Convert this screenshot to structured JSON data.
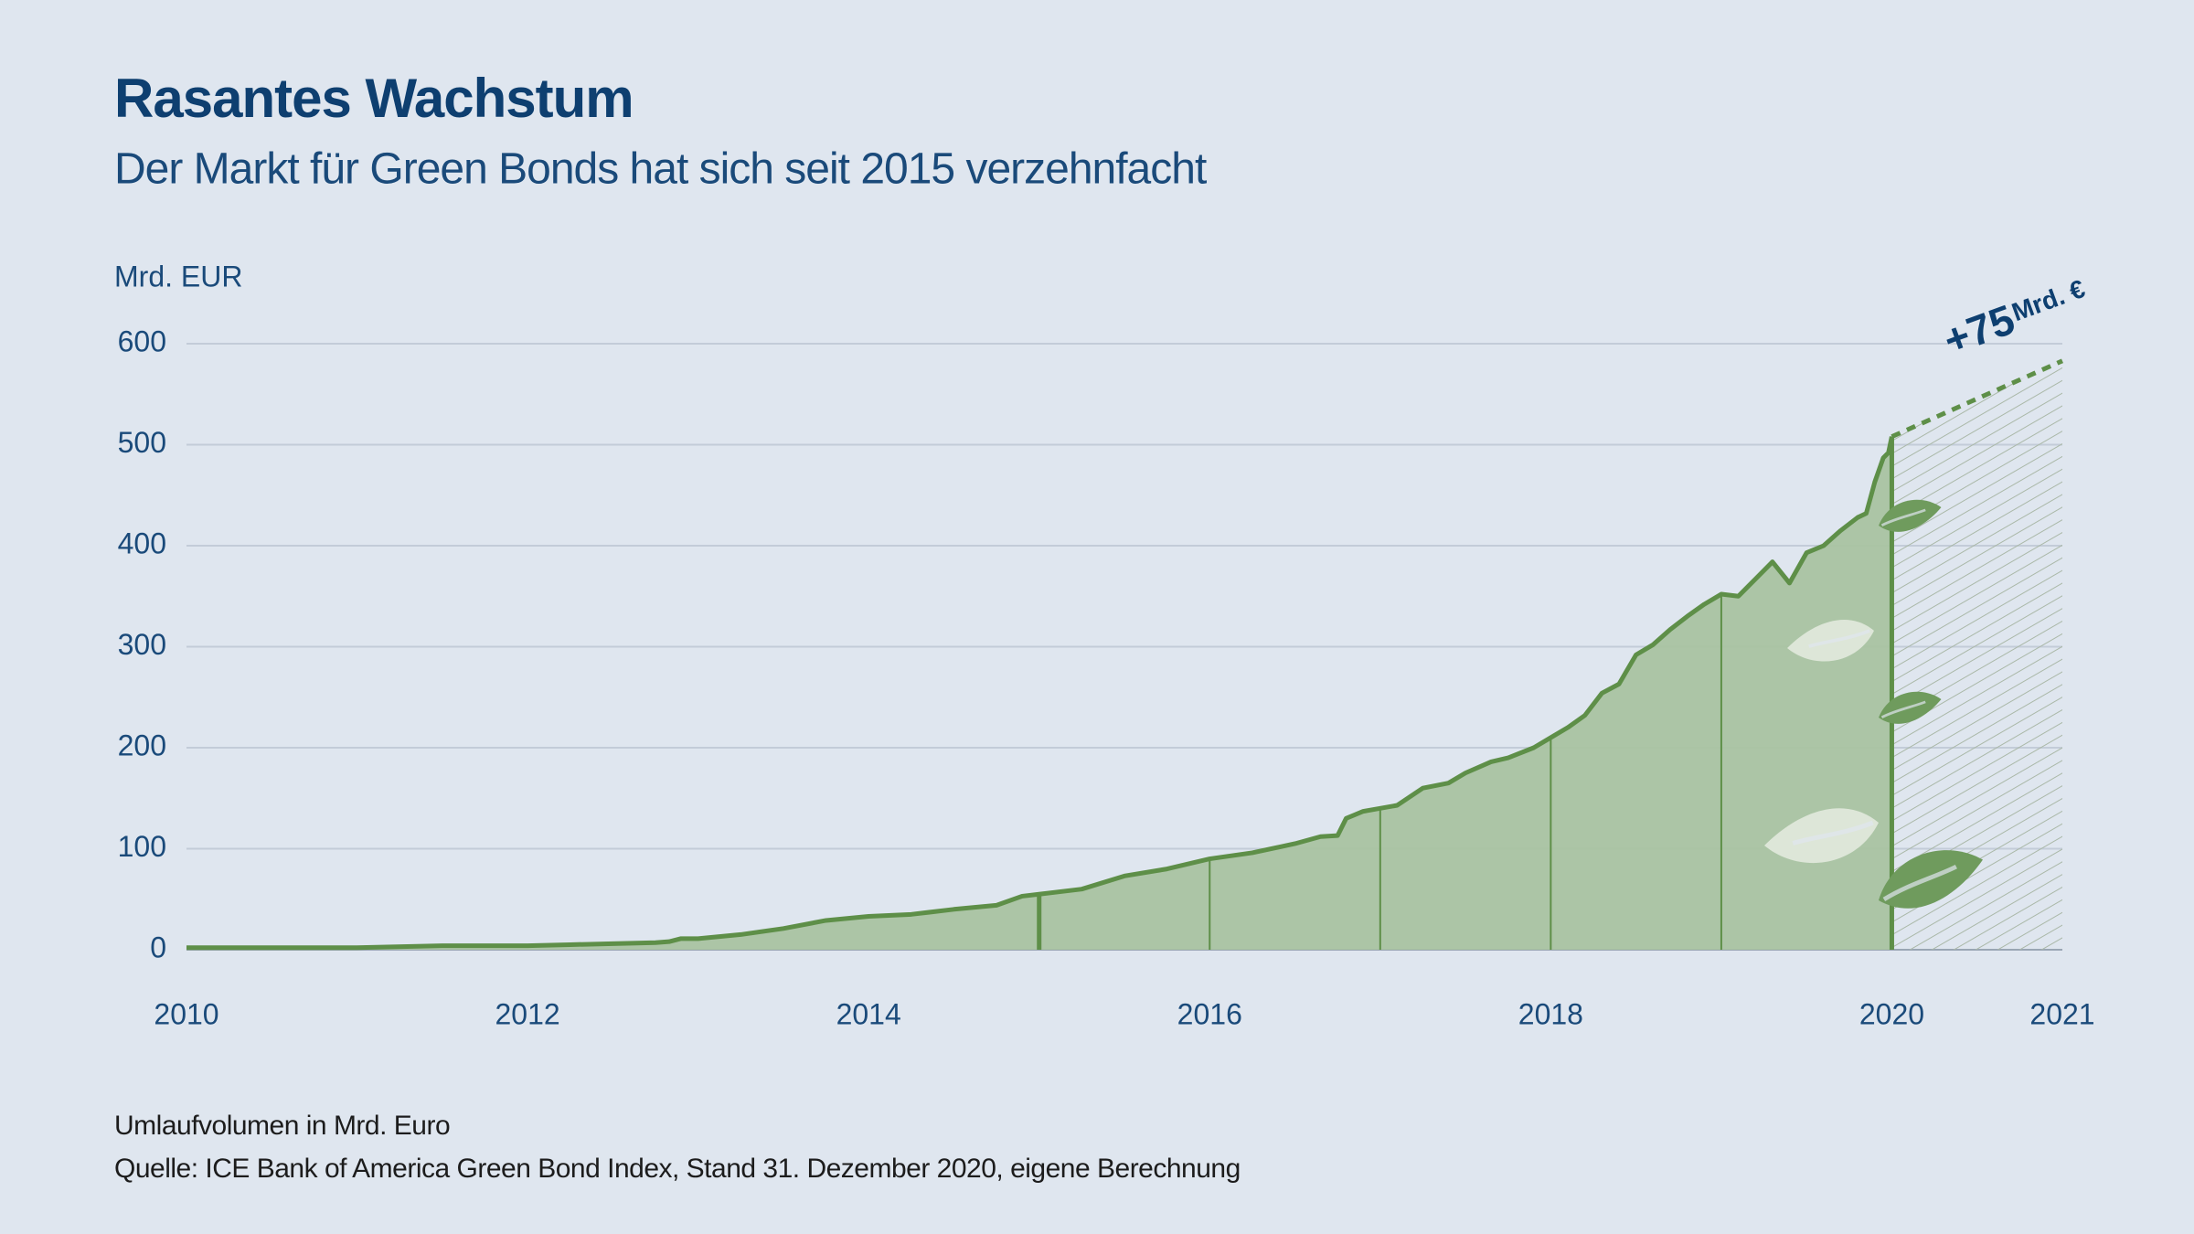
{
  "chart_data": {
    "type": "area",
    "title": "Rasantes Wachstum",
    "subtitle": "Der Markt für Green Bonds hat sich seit 2015 verzehnfacht",
    "y_label": "Mrd. EUR",
    "notes": [
      "Umlaufvolumen in Mrd. Euro",
      "Quelle: ICE Bank of America Green Bond Index, Stand 31. Dezember 2020, eigene Berechnung"
    ],
    "x": [
      2010,
      2010.5,
      2011,
      2011.5,
      2012,
      2012.25,
      2012.5,
      2012.75,
      2012.83,
      2012.9,
      2013,
      2013.25,
      2013.5,
      2013.75,
      2014,
      2014.25,
      2014.5,
      2014.75,
      2014.9,
      2015,
      2015.25,
      2015.5,
      2015.75,
      2016,
      2016.25,
      2016.5,
      2016.65,
      2016.75,
      2016.8,
      2016.9,
      2017,
      2017.1,
      2017.25,
      2017.4,
      2017.5,
      2017.65,
      2017.75,
      2017.9,
      2018,
      2018.1,
      2018.2,
      2018.3,
      2018.4,
      2018.5,
      2018.6,
      2018.7,
      2018.8,
      2018.9,
      2019,
      2019.1,
      2019.2,
      2019.3,
      2019.4,
      2019.5,
      2019.6,
      2019.7,
      2019.8,
      2019.85,
      2019.9,
      2019.95,
      2019.98,
      2020
    ],
    "values": [
      2,
      2,
      2,
      4,
      4,
      5,
      6,
      7,
      8,
      11,
      11,
      15,
      21,
      29,
      33,
      35,
      40,
      44,
      53,
      55,
      60,
      73,
      80,
      90,
      96,
      105,
      112,
      113,
      130,
      137,
      140,
      143,
      160,
      165,
      175,
      186,
      190,
      200,
      210,
      220,
      232,
      254,
      263,
      292,
      302,
      317,
      330,
      342,
      352,
      350,
      367,
      384,
      363,
      393,
      400,
      415,
      428,
      432,
      463,
      487,
      492,
      508
    ],
    "color": "#5e8f48",
    "fill": "#a9c3a1",
    "projection": {
      "x": [
        2020,
        2021
      ],
      "values": [
        508,
        583
      ]
    },
    "annotation": "+75",
    "annotation_unit": "Mrd. €",
    "xlim": [
      2010,
      2021
    ],
    "xticks": [
      2010,
      2012,
      2014,
      2016,
      2018,
      2020,
      2021
    ],
    "xminor": [
      2015,
      2016,
      2017,
      2018,
      2019,
      2020
    ],
    "ylim": [
      0,
      600
    ],
    "yticks": [
      0,
      100,
      200,
      300,
      400,
      500,
      600
    ],
    "grid": true
  }
}
